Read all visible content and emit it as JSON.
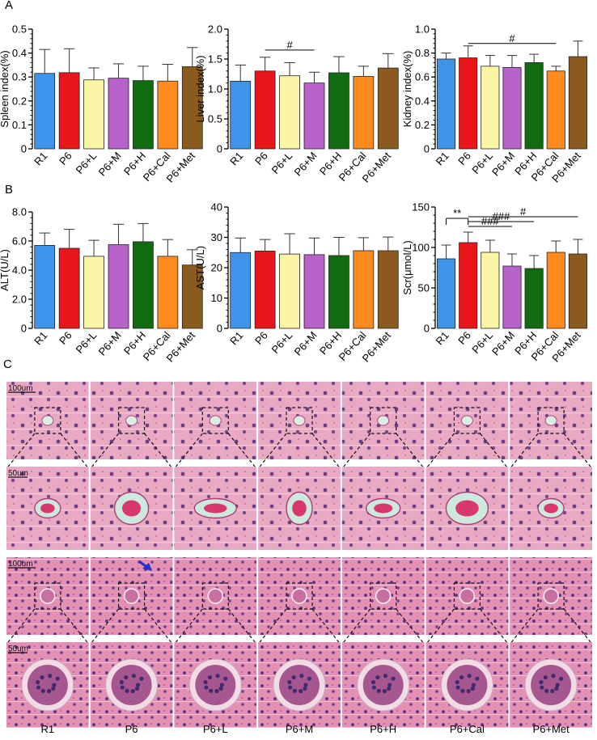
{
  "panel_letters": [
    "A",
    "B",
    "C"
  ],
  "colors": {
    "R1": "#3f93e8",
    "P6": "#e8161b",
    "P6+L": "#fbf5a6",
    "P6+M": "#b862cc",
    "P6+H": "#116c11",
    "P6+Cal": "#ff8a1e",
    "P6+Met": "#8b5a1e"
  },
  "chart_data": [
    {
      "type": "bar",
      "panel": "A",
      "categories": [
        "R1",
        "P6",
        "P6+L",
        "P6+M",
        "P6+H",
        "P6+Cal",
        "P6+Met"
      ],
      "values": [
        0.315,
        0.318,
        0.288,
        0.295,
        0.285,
        0.283,
        0.343
      ],
      "errors": [
        0.1,
        0.1,
        0.05,
        0.06,
        0.06,
        0.07,
        0.08
      ],
      "ylabel": "Spleen index(%)",
      "ylim": [
        0,
        0.5
      ],
      "yticks": [
        "0",
        "0.1",
        "0.2",
        "0.3",
        "0.4",
        "0.5"
      ],
      "annotations": []
    },
    {
      "type": "bar",
      "panel": "",
      "categories": [
        "R1",
        "P6",
        "P6+L",
        "P6+M",
        "P6+H",
        "P6+Cal",
        "P6+Met"
      ],
      "values": [
        1.13,
        1.3,
        1.22,
        1.1,
        1.27,
        1.21,
        1.35
      ],
      "errors": [
        0.27,
        0.23,
        0.22,
        0.18,
        0.27,
        0.17,
        0.24
      ],
      "ylabel": "Liver index(%)",
      "ylim": [
        0,
        2.0
      ],
      "yticks": [
        "0",
        "0.5",
        "1.0",
        "1.5",
        "2.0"
      ],
      "annotations": [
        {
          "from": 1,
          "to": 3,
          "label": "#",
          "y": 1.65
        }
      ]
    },
    {
      "type": "bar",
      "panel": "",
      "categories": [
        "R1",
        "P6",
        "P6+L",
        "P6+M",
        "P6+H",
        "P6+Cal",
        "P6+Met"
      ],
      "values": [
        0.75,
        0.76,
        0.69,
        0.68,
        0.72,
        0.65,
        0.77
      ],
      "errors": [
        0.05,
        0.1,
        0.09,
        0.1,
        0.07,
        0.04,
        0.13
      ],
      "ylabel": "Kidney index(%)",
      "ylim": [
        0,
        1.0
      ],
      "yticks": [
        "0",
        "0.2",
        "0.4",
        "0.6",
        "0.8",
        "1.0"
      ],
      "annotations": [
        {
          "from": 1,
          "to": 5,
          "label": "#",
          "y": 0.88
        }
      ]
    },
    {
      "type": "bar",
      "panel": "B",
      "categories": [
        "R1",
        "P6",
        "P6+L",
        "P6+M",
        "P6+H",
        "P6+Cal",
        "P6+Met"
      ],
      "values": [
        5.7,
        5.5,
        4.95,
        5.75,
        5.95,
        4.95,
        4.35
      ],
      "errors": [
        0.85,
        1.3,
        1.1,
        1.4,
        1.25,
        1.15,
        1.05
      ],
      "ylabel": "ALT(U/L)",
      "ylim": [
        0,
        8.0
      ],
      "yticks": [
        "0",
        "2.0",
        "4.0",
        "6.0",
        "8.0"
      ],
      "annotations": []
    },
    {
      "type": "bar",
      "panel": "",
      "categories": [
        "R1",
        "P6",
        "P6+L",
        "P6+M",
        "P6+H",
        "P6+Cal",
        "P6+Met"
      ],
      "values": [
        25,
        25.5,
        24.5,
        24.3,
        24,
        25.6,
        25.6
      ],
      "errors": [
        4.8,
        3.8,
        6.7,
        5.5,
        6,
        4.3,
        4.5
      ],
      "ylabel": "AST(U/L)",
      "ylim": [
        0,
        40
      ],
      "yticks": [
        "0",
        "10",
        "20",
        "30",
        "40"
      ],
      "annotations": []
    },
    {
      "type": "bar",
      "panel": "",
      "categories": [
        "R1",
        "P6",
        "P6+L",
        "P6+M",
        "P6+H",
        "P6+Cal",
        "P6+Met"
      ],
      "values": [
        86,
        106,
        94,
        77,
        74,
        94,
        92
      ],
      "errors": [
        17,
        13,
        15,
        15,
        16,
        14,
        18
      ],
      "ylabel": "Scr(μmol/L)",
      "ylim": [
        0,
        150
      ],
      "yticks": [
        "0",
        "50",
        "100",
        "150"
      ],
      "annotations": [
        {
          "from": 0,
          "to": 1,
          "label": "**",
          "y": 136,
          "bracket": true
        },
        {
          "from": 1,
          "to": 3,
          "label": "###",
          "y": 126
        },
        {
          "from": 1,
          "to": 4,
          "label": "###",
          "y": 132
        },
        {
          "from": 1,
          "to": 6,
          "label": "#",
          "y": 138
        }
      ]
    }
  ],
  "histology": {
    "groups": [
      "R1",
      "P6",
      "P6+L",
      "P6+M",
      "P6+H",
      "P6+Cal",
      "P6+Met"
    ],
    "scale_labels": [
      "100um",
      "50um",
      "100um",
      "50um"
    ]
  }
}
